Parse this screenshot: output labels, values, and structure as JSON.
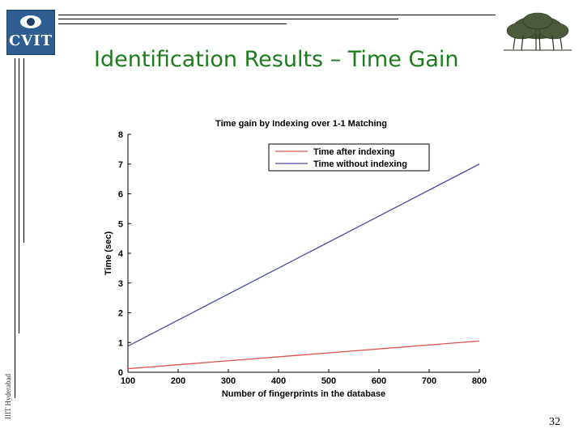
{
  "slide": {
    "logo_text": "CVIT",
    "title": "Identification Results – Time Gain",
    "side_caption": "IIIT Hyderabad",
    "page_number": "32"
  },
  "chart_data": {
    "type": "line",
    "title": "Time gain by Indexing over 1-1 Matching",
    "xlabel": "Number of fingerprints in the database",
    "ylabel": "Time (sec)",
    "xlim": [
      100,
      800
    ],
    "ylim": [
      0,
      8
    ],
    "xticks": [
      100,
      200,
      300,
      400,
      500,
      600,
      700,
      800
    ],
    "yticks": [
      0,
      1,
      2,
      3,
      4,
      5,
      6,
      7,
      8
    ],
    "grid": false,
    "legend_position": "top-right",
    "series": [
      {
        "name": "Time after indexing",
        "color": "#e05050",
        "x": [
          100,
          800
        ],
        "y": [
          0.12,
          1.05
        ]
      },
      {
        "name": "Time without indexing",
        "color": "#4a4aa8",
        "x": [
          100,
          800
        ],
        "y": [
          0.88,
          7.0
        ]
      }
    ]
  }
}
